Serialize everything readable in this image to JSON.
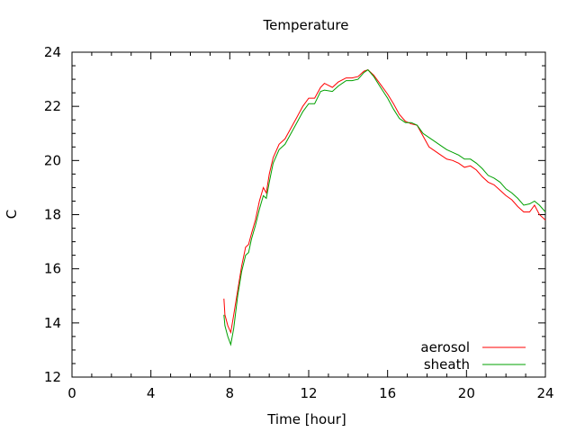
{
  "chart_data": {
    "type": "line",
    "title": "Temperature",
    "xlabel": "Time [hour]",
    "ylabel": "C",
    "xlim": [
      0,
      24
    ],
    "ylim": [
      12,
      24
    ],
    "xticks": [
      0,
      4,
      8,
      12,
      16,
      20,
      24
    ],
    "yticks": [
      12,
      14,
      16,
      18,
      20,
      22,
      24
    ],
    "grid": false,
    "legend_position": "bottom-right",
    "series": [
      {
        "name": "aerosol",
        "color": "#ff0000",
        "points": [
          [
            7.7,
            14.9
          ],
          [
            7.75,
            14.3
          ],
          [
            7.9,
            13.9
          ],
          [
            8.05,
            13.65
          ],
          [
            8.2,
            14.3
          ],
          [
            8.4,
            15.2
          ],
          [
            8.6,
            16.1
          ],
          [
            8.8,
            16.8
          ],
          [
            8.95,
            16.9
          ],
          [
            9.1,
            17.3
          ],
          [
            9.3,
            17.8
          ],
          [
            9.5,
            18.5
          ],
          [
            9.7,
            19.0
          ],
          [
            9.85,
            18.8
          ],
          [
            10.0,
            19.5
          ],
          [
            10.2,
            20.1
          ],
          [
            10.5,
            20.6
          ],
          [
            10.8,
            20.8
          ],
          [
            11.1,
            21.2
          ],
          [
            11.4,
            21.6
          ],
          [
            11.7,
            22.0
          ],
          [
            12.0,
            22.3
          ],
          [
            12.3,
            22.3
          ],
          [
            12.6,
            22.7
          ],
          [
            12.8,
            22.85
          ],
          [
            13.2,
            22.7
          ],
          [
            13.5,
            22.9
          ],
          [
            13.9,
            23.05
          ],
          [
            14.2,
            23.05
          ],
          [
            14.5,
            23.1
          ],
          [
            14.8,
            23.3
          ],
          [
            15.0,
            23.35
          ],
          [
            15.3,
            23.15
          ],
          [
            15.6,
            22.85
          ],
          [
            16.0,
            22.45
          ],
          [
            16.3,
            22.1
          ],
          [
            16.6,
            21.7
          ],
          [
            16.9,
            21.45
          ],
          [
            17.2,
            21.35
          ],
          [
            17.5,
            21.3
          ],
          [
            17.8,
            20.9
          ],
          [
            18.1,
            20.5
          ],
          [
            18.4,
            20.35
          ],
          [
            18.7,
            20.2
          ],
          [
            19.0,
            20.05
          ],
          [
            19.3,
            20.0
          ],
          [
            19.6,
            19.9
          ],
          [
            19.9,
            19.75
          ],
          [
            20.2,
            19.8
          ],
          [
            20.5,
            19.65
          ],
          [
            20.8,
            19.4
          ],
          [
            21.1,
            19.2
          ],
          [
            21.4,
            19.1
          ],
          [
            21.7,
            18.9
          ],
          [
            22.0,
            18.7
          ],
          [
            22.3,
            18.55
          ],
          [
            22.6,
            18.3
          ],
          [
            22.9,
            18.1
          ],
          [
            23.2,
            18.1
          ],
          [
            23.45,
            18.35
          ],
          [
            23.7,
            18.0
          ],
          [
            24.0,
            17.8
          ]
        ]
      },
      {
        "name": "sheath",
        "color": "#00a000",
        "points": [
          [
            7.7,
            14.3
          ],
          [
            7.75,
            13.9
          ],
          [
            7.9,
            13.5
          ],
          [
            8.05,
            13.2
          ],
          [
            8.2,
            13.8
          ],
          [
            8.4,
            15.0
          ],
          [
            8.6,
            15.9
          ],
          [
            8.8,
            16.5
          ],
          [
            8.95,
            16.6
          ],
          [
            9.1,
            17.1
          ],
          [
            9.3,
            17.6
          ],
          [
            9.5,
            18.2
          ],
          [
            9.7,
            18.7
          ],
          [
            9.85,
            18.6
          ],
          [
            10.0,
            19.2
          ],
          [
            10.2,
            19.9
          ],
          [
            10.5,
            20.4
          ],
          [
            10.8,
            20.6
          ],
          [
            11.1,
            21.0
          ],
          [
            11.4,
            21.4
          ],
          [
            11.7,
            21.8
          ],
          [
            12.0,
            22.1
          ],
          [
            12.3,
            22.1
          ],
          [
            12.6,
            22.55
          ],
          [
            12.8,
            22.6
          ],
          [
            13.2,
            22.55
          ],
          [
            13.5,
            22.75
          ],
          [
            13.9,
            22.95
          ],
          [
            14.2,
            22.95
          ],
          [
            14.5,
            23.0
          ],
          [
            14.8,
            23.25
          ],
          [
            15.0,
            23.35
          ],
          [
            15.3,
            23.1
          ],
          [
            15.6,
            22.75
          ],
          [
            16.0,
            22.3
          ],
          [
            16.3,
            21.9
          ],
          [
            16.6,
            21.55
          ],
          [
            16.9,
            21.4
          ],
          [
            17.2,
            21.4
          ],
          [
            17.5,
            21.3
          ],
          [
            17.8,
            21.0
          ],
          [
            18.1,
            20.85
          ],
          [
            18.4,
            20.7
          ],
          [
            18.7,
            20.55
          ],
          [
            19.0,
            20.4
          ],
          [
            19.3,
            20.3
          ],
          [
            19.6,
            20.2
          ],
          [
            19.9,
            20.05
          ],
          [
            20.2,
            20.05
          ],
          [
            20.5,
            19.9
          ],
          [
            20.8,
            19.7
          ],
          [
            21.1,
            19.45
          ],
          [
            21.4,
            19.35
          ],
          [
            21.7,
            19.2
          ],
          [
            22.0,
            18.95
          ],
          [
            22.3,
            18.8
          ],
          [
            22.6,
            18.6
          ],
          [
            22.9,
            18.35
          ],
          [
            23.2,
            18.4
          ],
          [
            23.45,
            18.5
          ],
          [
            23.7,
            18.35
          ],
          [
            24.0,
            18.1
          ]
        ]
      }
    ]
  }
}
